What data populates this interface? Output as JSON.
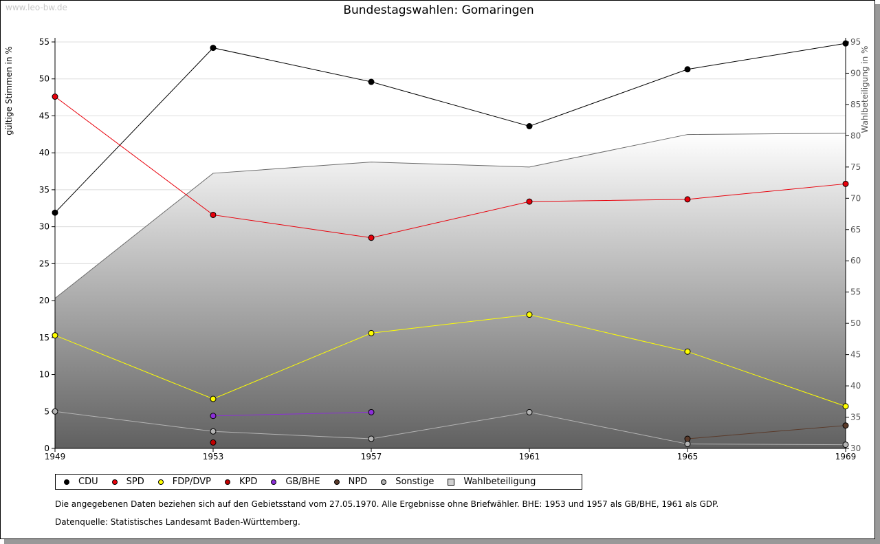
{
  "watermark": "www.leo-bw.de",
  "chart_data": {
    "type": "line",
    "title": "Bundestagswahlen: Gomaringen",
    "ylabel": "gültige Stimmen in %",
    "y2label": "Wahlbeteiligung in %",
    "x": [
      1949,
      1953,
      1957,
      1961,
      1965,
      1969
    ],
    "ylim": [
      0,
      55
    ],
    "yticks": [
      0,
      5,
      10,
      15,
      20,
      25,
      30,
      35,
      40,
      45,
      50,
      55
    ],
    "y2lim": [
      30,
      95
    ],
    "y2ticks": [
      30,
      35,
      40,
      45,
      50,
      55,
      60,
      65,
      70,
      75,
      80,
      85,
      90,
      95
    ],
    "grid": true,
    "legend_position": "bottom",
    "series": [
      {
        "name": "CDU",
        "color": "#000000",
        "values": [
          31.9,
          54.2,
          49.6,
          43.6,
          51.3,
          54.8
        ]
      },
      {
        "name": "SPD",
        "color": "#e8000b",
        "values": [
          47.6,
          31.6,
          28.5,
          33.4,
          33.7,
          35.8
        ]
      },
      {
        "name": "FDP/DVP",
        "color": "#ffff00",
        "values": [
          15.3,
          6.7,
          15.6,
          18.1,
          13.1,
          5.7
        ]
      },
      {
        "name": "KPD",
        "color": "#c00000",
        "values": [
          null,
          0.8,
          null,
          null,
          null,
          null
        ]
      },
      {
        "name": "GB/BHE",
        "color": "#8c2fd8",
        "values": [
          null,
          4.4,
          4.9,
          null,
          null,
          null
        ]
      },
      {
        "name": "NPD",
        "color": "#5a3a2a",
        "values": [
          null,
          null,
          null,
          null,
          1.3,
          3.1
        ]
      },
      {
        "name": "Sonstige",
        "color": "#b4b4b4",
        "values": [
          5.0,
          2.3,
          1.3,
          4.9,
          0.6,
          0.5
        ]
      },
      {
        "name": "Wahlbeteiligung",
        "color": "#d0d0d0",
        "axis": "right",
        "type": "area",
        "values": [
          54.0,
          74.0,
          75.8,
          75.0,
          80.2,
          80.4
        ]
      }
    ]
  },
  "notes": {
    "line1": "Die angegebenen Daten beziehen sich auf den Gebietsstand vom 27.05.1970. Alle Ergebnisse ohne Briefwähler. BHE: 1953 und 1957 als GB/BHE, 1961 als GDP.",
    "line2": "Datenquelle: Statistisches Landesamt Baden-Württemberg."
  }
}
